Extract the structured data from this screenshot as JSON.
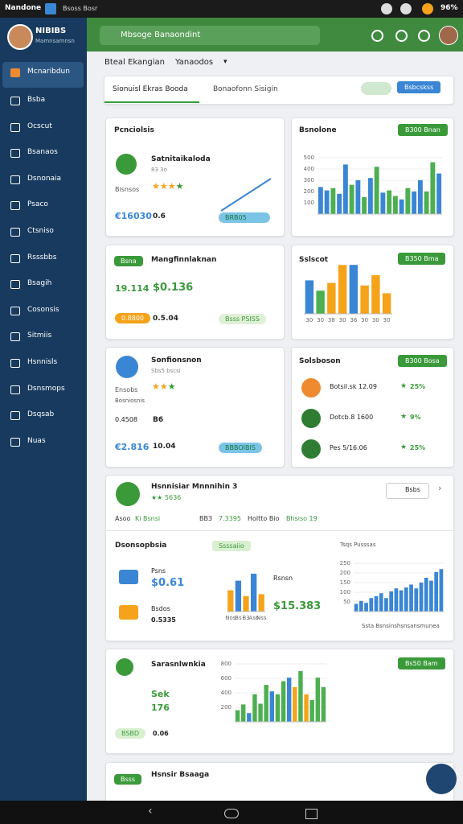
{
  "status_bar": {
    "carrier": "Nandone",
    "app": "Bsoss Bosr",
    "battery": "96%"
  },
  "sidebar": {
    "user_name": "NIBIBS",
    "user_role": "Mamnsamnsn",
    "menu": [
      "Mcnaribdun",
      "Bsba",
      "Ocscut",
      "Bsanaos",
      "Dsnonaia",
      "Psaco",
      "Ctsniso",
      "Rsssbbs",
      "Bsagih",
      "Cosonsis",
      "Sitmiis",
      "Hsnnisls",
      "Dsnsmops",
      "Dsqsab",
      "Nuas"
    ]
  },
  "header": {
    "search": "Mbsoge Banaondint"
  },
  "toolbar": {
    "filter": "Bteal Ekangian",
    "period": "Yanaodos"
  },
  "tabs": {
    "items": [
      "Sionuisl Ekras Booda",
      "Bonaofonn Sisigin"
    ],
    "button": "Bsbcskss"
  },
  "card_1": {
    "title": "Pcnciolsis",
    "name": "Satnitaikaloda",
    "sub": "83 3o",
    "label": "Bisnsos",
    "amount": "€16030",
    "value": "0.6",
    "tag": "BRB05"
  },
  "card_2": {
    "badge": "Bsna",
    "name": "Mangfinnlaknan",
    "amount": "$0.136",
    "value": "19.114",
    "pill": "0.8800",
    "sub_value": "0.5.04",
    "tag": "Bsss PSISS"
  },
  "card_3": {
    "name": "Sonfionsnon",
    "sub": "Sbs5 bscsi",
    "label": "Ensobs",
    "note": "Bosniosnis",
    "value": "0.4508",
    "code": "B6",
    "amount": "€2.816",
    "sub_value": "10.04",
    "tag": "BBBOIBIS"
  },
  "chart_1": {
    "type": "bar",
    "title": "Bsnolone",
    "button": "B300 Bnan",
    "ylim": [
      0,
      500
    ],
    "yticks": [
      100,
      200,
      300,
      400,
      500
    ],
    "values": [
      240,
      210,
      230,
      180,
      440,
      260,
      300,
      150,
      320,
      420,
      190,
      210,
      160,
      130,
      230,
      200,
      300,
      200,
      460,
      360
    ],
    "colors": [
      "#3a86d4",
      "#3a86d4",
      "#4caf50",
      "#3a86d4",
      "#3a86d4",
      "#4caf50",
      "#3a86d4",
      "#4caf50",
      "#3a86d4",
      "#4caf50",
      "#3a86d4",
      "#4caf50",
      "#4caf50",
      "#3a86d4",
      "#4caf50",
      "#3a86d4",
      "#3a86d4",
      "#4caf50",
      "#4caf50",
      "#3a86d4"
    ]
  },
  "chart_2": {
    "type": "bar",
    "title": "Sslscot",
    "button": "B350 Bma",
    "ylim": [
      0,
      100
    ],
    "categories": [
      "30",
      "30",
      "38",
      "30",
      "36",
      "30",
      "30",
      "30"
    ],
    "values": [
      65,
      45,
      60,
      95,
      95,
      55,
      75,
      40
    ],
    "colors": [
      "#3a86d4",
      "#4caf50",
      "#f5a31a",
      "#f5a31a",
      "#3a86d4",
      "#f5a31a",
      "#f5a31a",
      "#f5a31a"
    ]
  },
  "list_card": {
    "title": "Solsboson",
    "button": "B300 Bosa",
    "items": [
      {
        "label": "Botsil.sk 12.09",
        "change": "25%"
      },
      {
        "label": "Dotcb.8 1600",
        "change": "9%"
      },
      {
        "label": "Pes 5/16.06",
        "change": "25%"
      }
    ]
  },
  "summary": {
    "title": "Hsnnisiar Mnnnihin 3",
    "rating": "5636",
    "button": "Bsbs",
    "stats": [
      "Asoo",
      "Ki Bsnsi",
      "BB3",
      "7.3395",
      "Holtto Bio",
      "Bhsiso 19"
    ],
    "section": "Dsonsopbsia",
    "income_label": "Psns",
    "income": "$0.61",
    "expense_label": "Bsdos",
    "expense": "0.5335",
    "pill": "Ssssaiio",
    "total_label": "Rsnsn",
    "total": "$15.383",
    "trend_title": "Tsqs Pusssas",
    "trend_caption": "Ssta Bsnsinshsnsansmunea"
  },
  "chart_3": {
    "type": "bar",
    "ylim": [
      0,
      100
    ],
    "categories": [
      "Nos",
      "Bs",
      "B3",
      "Ass",
      "Nss"
    ],
    "values": [
      55,
      80,
      40,
      98,
      45
    ],
    "colors": [
      "#f5a31a",
      "#3a86d4",
      "#f5a31a",
      "#3a86d4",
      "#f5a31a"
    ]
  },
  "chart_4": {
    "type": "bar",
    "ylim": [
      0,
      250
    ],
    "yticks": [
      50,
      100,
      150,
      200,
      250
    ],
    "values": [
      40,
      55,
      45,
      70,
      80,
      95,
      70,
      105,
      120,
      110,
      125,
      140,
      120,
      150,
      175,
      160,
      205,
      220
    ],
    "colors": [
      "#3a86d4",
      "#3a86d4",
      "#3a86d4",
      "#3a86d4",
      "#3a86d4",
      "#3a86d4",
      "#3a86d4",
      "#3a86d4",
      "#3a86d4",
      "#3a86d4",
      "#3a86d4",
      "#3a86d4",
      "#3a86d4",
      "#3a86d4",
      "#3a86d4",
      "#3a86d4",
      "#3a86d4",
      "#3a86d4"
    ]
  },
  "card_5": {
    "name": "Sarasnlwnkia",
    "code": "Sek",
    "value": "176",
    "tag": "BSBD",
    "sub_value": "0.06",
    "button": "Bs50 Bam"
  },
  "chart_5": {
    "type": "bar",
    "ylim": [
      0,
      800
    ],
    "yticks": [
      200,
      400,
      600,
      800
    ],
    "values": [
      160,
      240,
      120,
      380,
      250,
      510,
      420,
      380,
      560,
      610,
      480,
      700,
      380,
      300,
      610,
      480
    ],
    "colors": [
      "#4caf50",
      "#4caf50",
      "#3a86d4",
      "#4caf50",
      "#4caf50",
      "#4caf50",
      "#3a86d4",
      "#4caf50",
      "#4caf50",
      "#3a86d4",
      "#f5a31a",
      "#4caf50",
      "#f5a31a",
      "#4caf50",
      "#4caf50",
      "#4caf50"
    ]
  },
  "card_6": {
    "badge": "Bsss",
    "name": "Hsnsir Bsaaga"
  }
}
